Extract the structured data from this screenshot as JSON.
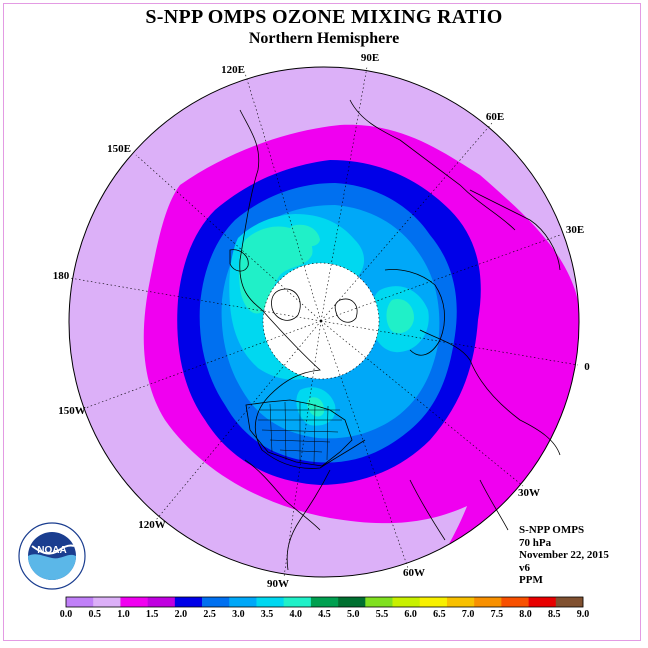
{
  "title": "S-NPP OMPS OZONE MIXING RATIO",
  "subtitle": "Northern Hemisphere",
  "longitude_labels": [
    "90E",
    "60E",
    "30E",
    "0",
    "30W",
    "60W",
    "90W",
    "120W",
    "150W",
    "180",
    "150E",
    "120E"
  ],
  "info": {
    "instrument": "S-NPP OMPS",
    "level": "70 hPa",
    "date": "November 22, 2015",
    "version": "v6",
    "units": "PPM"
  },
  "logo": {
    "text": "NOAA"
  },
  "legend": {
    "colors": [
      "#c080f8",
      "#dcb0f8",
      "#f000f0",
      "#c000e0",
      "#0000e8",
      "#0070f0",
      "#00a8f8",
      "#00d8f0",
      "#20f0c8",
      "#00a050",
      "#007030",
      "#80e020",
      "#c8f000",
      "#f8f000",
      "#f8c000",
      "#f89000",
      "#f85000",
      "#e80000",
      "#805030"
    ],
    "labels": [
      "0.0",
      "0.5",
      "1.0",
      "1.5",
      "2.0",
      "2.5",
      "3.0",
      "3.5",
      "4.0",
      "4.5",
      "5.0",
      "5.5",
      "6.0",
      "6.5",
      "7.0",
      "7.5",
      "8.0",
      "8.5",
      "9.0"
    ]
  }
}
